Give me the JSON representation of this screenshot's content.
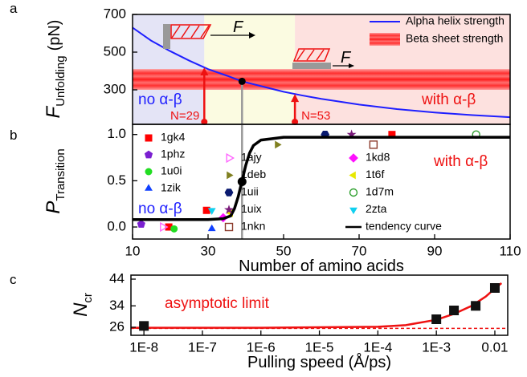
{
  "chart_data": [
    {
      "type": "line",
      "panel": "a",
      "ylabel": {
        "symbol": "F",
        "subscript": "Unfolding",
        "unit": "(pN)"
      },
      "xlim": [
        10,
        110
      ],
      "ylim": [
        117,
        700
      ],
      "yticks": [
        300,
        500,
        700
      ],
      "regions": [
        {
          "from": 10,
          "to": 29,
          "color": "#e4e4f6"
        },
        {
          "from": 29,
          "to": 53,
          "color": "#fbfbe1"
        },
        {
          "from": 53,
          "to": 110,
          "color": "#fde1df"
        }
      ],
      "series": [
        {
          "name": "Alpha helix strength",
          "type": "line",
          "color": "#1f1fff",
          "x": [
            10,
            15,
            20,
            25,
            30,
            35,
            39,
            45,
            50,
            55,
            60,
            70,
            80,
            90,
            100,
            110
          ],
          "values": [
            630,
            560,
            505,
            455,
            410,
            375,
            345,
            315,
            290,
            270,
            252,
            222,
            198,
            180,
            166,
            155
          ]
        },
        {
          "name": "Beta sheet strength",
          "type": "band",
          "color": "#ff2020",
          "low": 300,
          "high": 410
        }
      ],
      "intersection": {
        "x": 39,
        "y": 345
      },
      "arrows": [
        {
          "label": "N=29",
          "x": 29,
          "y0": 130,
          "y1": 419
        },
        {
          "label": "N=53",
          "x": 53,
          "y0": 130,
          "y1": 278
        }
      ],
      "annotations": [
        {
          "text": "no α-β",
          "color": "#1f1fff"
        },
        {
          "text": "with α-β",
          "color": "#ee1111"
        }
      ],
      "force_labels": [
        "F",
        "F"
      ],
      "legend": "upper right"
    },
    {
      "type": "scatter",
      "panel": "b",
      "ylabel": {
        "symbol": "P",
        "subscript": "Transition"
      },
      "xlabel": "Number of amino acids",
      "xlim": [
        10,
        110
      ],
      "xticks": [
        10,
        30,
        50,
        70,
        90,
        110
      ],
      "ylim": [
        -0.13,
        1.11
      ],
      "yticks": [
        {
          "value": 0,
          "label": "0.0"
        },
        {
          "value": 0.5,
          "label": "0.5"
        },
        {
          "value": 1,
          "label": "1.0"
        }
      ],
      "series": [
        {
          "name": "1gk4",
          "marker": "square",
          "color": "#ff0000",
          "x": [
            19.6,
            29.6,
            78.7
          ],
          "values": [
            0,
            0.18,
            1.0
          ]
        },
        {
          "name": "1phz",
          "marker": "pentagon",
          "color": "#7a1fd0",
          "x": [
            12.3
          ],
          "values": [
            0.03
          ]
        },
        {
          "name": "1u0i",
          "marker": "circle",
          "color": "#22dd22",
          "x": [
            21
          ],
          "values": [
            -0.02
          ]
        },
        {
          "name": "1zik",
          "marker": "triangle-up",
          "color": "#1040ff",
          "x": [
            31
          ],
          "values": [
            -0.02
          ]
        },
        {
          "name": "1ajy",
          "marker": "triangle-right-open",
          "color": "#ff66ff",
          "x": [
            18
          ],
          "values": [
            0
          ]
        },
        {
          "name": "1deb",
          "marker": "triangle-right",
          "color": "#808020",
          "x": [
            48.3
          ],
          "values": [
            0.89
          ]
        },
        {
          "name": "1uii",
          "marker": "hexagon",
          "color": "#0a1a70",
          "x": [
            61
          ],
          "values": [
            1.0
          ]
        },
        {
          "name": "1uix",
          "marker": "star",
          "color": "#7a1a7a",
          "x": [
            68
          ],
          "values": [
            1.0
          ]
        },
        {
          "name": "1nkn",
          "marker": "square-open",
          "color": "#8b3a2a",
          "x": [
            73.8
          ],
          "values": [
            0.89
          ]
        },
        {
          "name": "1kd8",
          "marker": "diamond",
          "color": "#ff10ff",
          "x": [
            34
          ],
          "values": [
            0.1
          ]
        },
        {
          "name": "1t6f",
          "marker": "triangle-left",
          "color": "#e8e800",
          "x": [
            36
          ],
          "values": [
            0.15
          ]
        },
        {
          "name": "1d7m",
          "marker": "circle-open",
          "color": "#30a030",
          "x": [
            101
          ],
          "values": [
            1.0
          ]
        },
        {
          "name": "2zta",
          "marker": "triangle-down",
          "color": "#10d0f0",
          "x": [
            31
          ],
          "values": [
            0.18
          ]
        },
        {
          "name": "tendency curve",
          "type": "line",
          "color": "#000000",
          "x": [
            10,
            20,
            30,
            34,
            36,
            37,
            38,
            39,
            40,
            41,
            42,
            44,
            50,
            70,
            110
          ],
          "values": [
            0.08,
            0.08,
            0.08,
            0.09,
            0.12,
            0.2,
            0.33,
            0.5,
            0.67,
            0.8,
            0.88,
            0.94,
            0.97,
            0.97,
            0.97
          ]
        }
      ],
      "transition_point": {
        "x": 39,
        "y": 0.49
      },
      "annotations": [
        {
          "text": "no α-β",
          "color": "#1f1fff"
        },
        {
          "text": "with α-β",
          "color": "#ee1111"
        }
      ],
      "legend": "inside"
    },
    {
      "type": "line",
      "panel": "c",
      "xscale": "log",
      "ylabel": {
        "symbol": "N",
        "subscript": "cr"
      },
      "xlabel": "Pulling speed (Å/ps)",
      "xlim": [
        6e-09,
        0.0166
      ],
      "xticks": [
        {
          "value": 1e-08,
          "label": "1E-8"
        },
        {
          "value": 1e-07,
          "label": "1E-7"
        },
        {
          "value": 1e-06,
          "label": "1E-6"
        },
        {
          "value": 1e-05,
          "label": "1E-5"
        },
        {
          "value": 0.0001,
          "label": "1E-4"
        },
        {
          "value": 0.001,
          "label": "1E-3"
        },
        0.01
      ],
      "ylim": [
        23,
        45.5
      ],
      "yticks": [
        26,
        34,
        44
      ],
      "series": [
        {
          "type": "line",
          "color": "#ee1111",
          "x": [
            6e-09,
            1e-06,
            0.0001,
            0.0003,
            0.001,
            0.002,
            0.004,
            0.007,
            0.01,
            0.013
          ],
          "values": [
            25.8,
            25.8,
            26.2,
            26.8,
            28.8,
            31,
            34,
            37.5,
            40.5,
            42.5
          ]
        },
        {
          "type": "scatter",
          "marker": "square",
          "color": "#111111",
          "x": [
            1e-08,
            0.001,
            0.002,
            0.0047,
            0.01
          ],
          "values": [
            26.5,
            29,
            32.3,
            34,
            40.7
          ]
        }
      ],
      "asymptote": {
        "value": 25.6,
        "label": "asymptotic limit",
        "color": "#ee1111"
      }
    }
  ]
}
